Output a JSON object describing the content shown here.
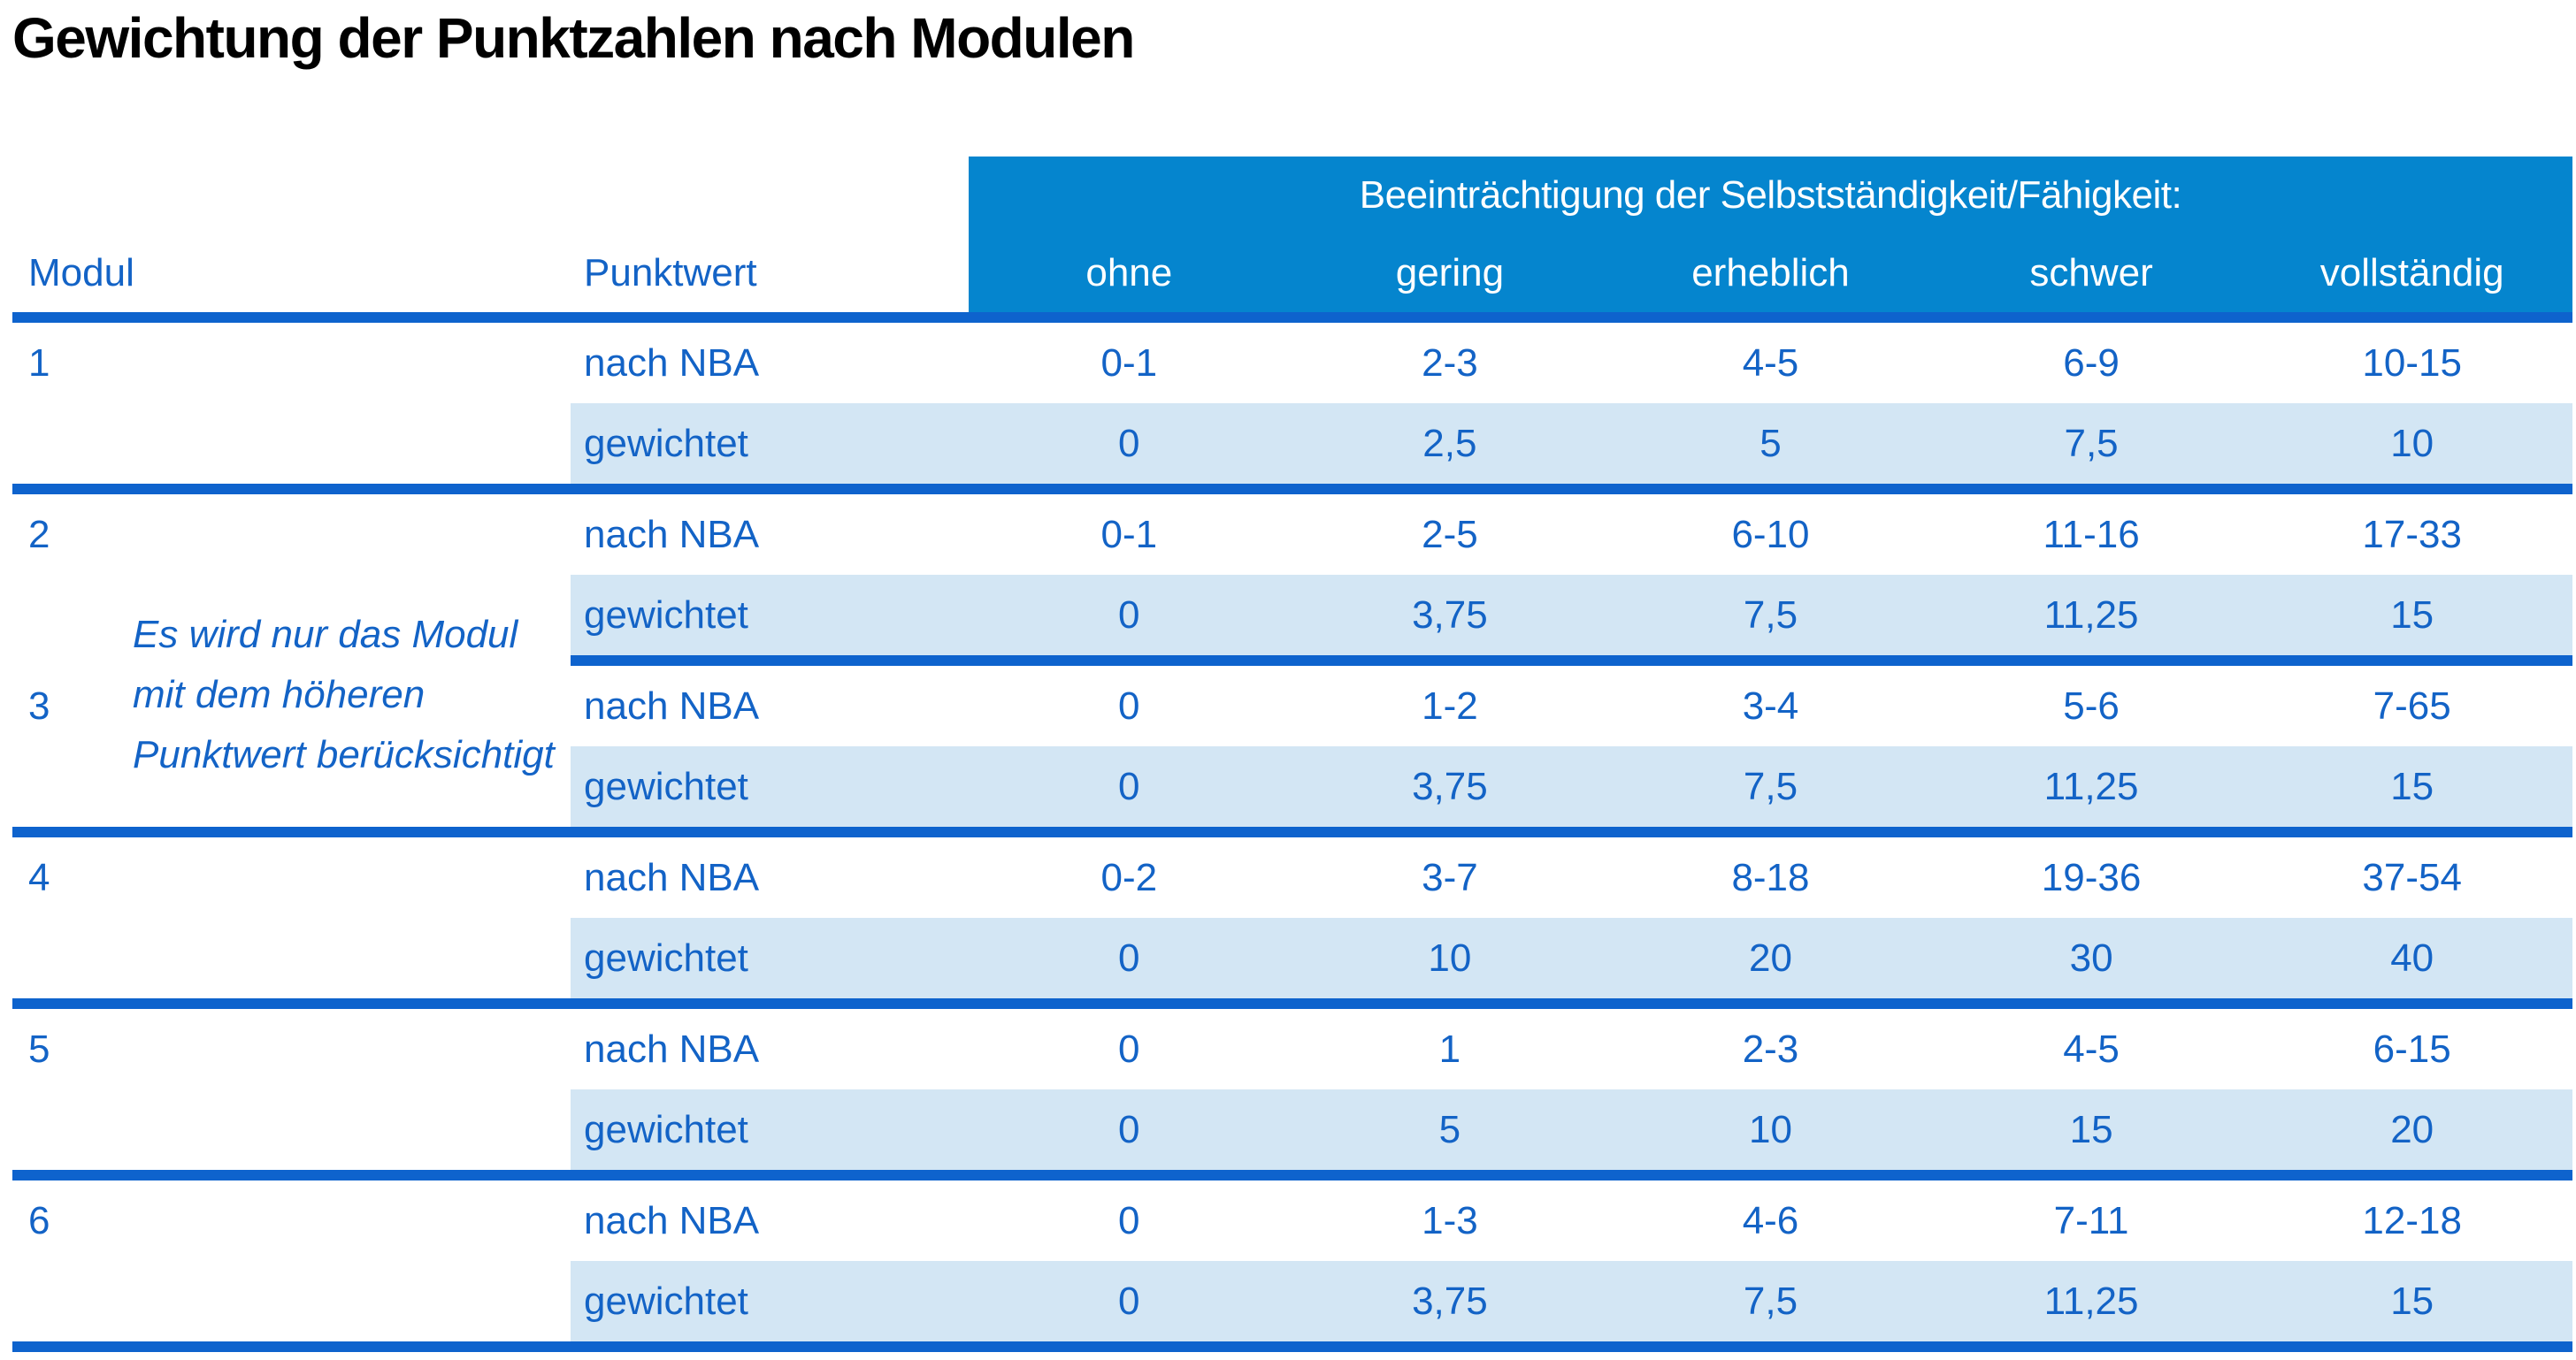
{
  "page_title": "Gewichtung der Punktzahlen nach Modulen",
  "table": {
    "column_headers": {
      "modul": "Modul",
      "punktwert": "Punktwert"
    },
    "impairment_banner": "Beeinträchtigung der Selbstständigkeit/Fähigkeit:",
    "severity_levels": [
      "ohne",
      "gering",
      "erheblich",
      "schwer",
      "vollständig"
    ],
    "row_type_labels": {
      "nba": "nach NBA",
      "weighted": "gewichtet"
    },
    "note_modules_2_3": {
      "lines": [
        "Es wird nur das Modul",
        "mit dem höheren",
        "Punktwert berücksichtigt"
      ]
    },
    "modules": [
      {
        "id": "1",
        "nba": [
          "0-1",
          "2-3",
          "4-5",
          "6-9",
          "10-15"
        ],
        "weighted": [
          "0",
          "2,5",
          "5",
          "7,5",
          "10"
        ]
      },
      {
        "id": "2",
        "nba": [
          "0-1",
          "2-5",
          "6-10",
          "11-16",
          "17-33"
        ],
        "weighted": [
          "0",
          "3,75",
          "7,5",
          "11,25",
          "15"
        ]
      },
      {
        "id": "3",
        "nba": [
          "0",
          "1-2",
          "3-4",
          "5-6",
          "7-65"
        ],
        "weighted": [
          "0",
          "3,75",
          "7,5",
          "11,25",
          "15"
        ]
      },
      {
        "id": "4",
        "nba": [
          "0-2",
          "3-7",
          "8-18",
          "19-36",
          "37-54"
        ],
        "weighted": [
          "0",
          "10",
          "20",
          "30",
          "40"
        ]
      },
      {
        "id": "5",
        "nba": [
          "0",
          "1",
          "2-3",
          "4-5",
          "6-15"
        ],
        "weighted": [
          "0",
          "5",
          "10",
          "15",
          "20"
        ]
      },
      {
        "id": "6",
        "nba": [
          "0",
          "1-3",
          "4-6",
          "7-11",
          "12-18"
        ],
        "weighted": [
          "0",
          "3,75",
          "7,5",
          "11,25",
          "15"
        ]
      }
    ]
  },
  "colors": {
    "header_fill": "#0585ce",
    "header_text": "#ffffff",
    "body_text": "#1363c6",
    "separator_line": "#0e63cd",
    "weighted_row_fill": "#d3e6f4",
    "title_text": "#000000"
  }
}
